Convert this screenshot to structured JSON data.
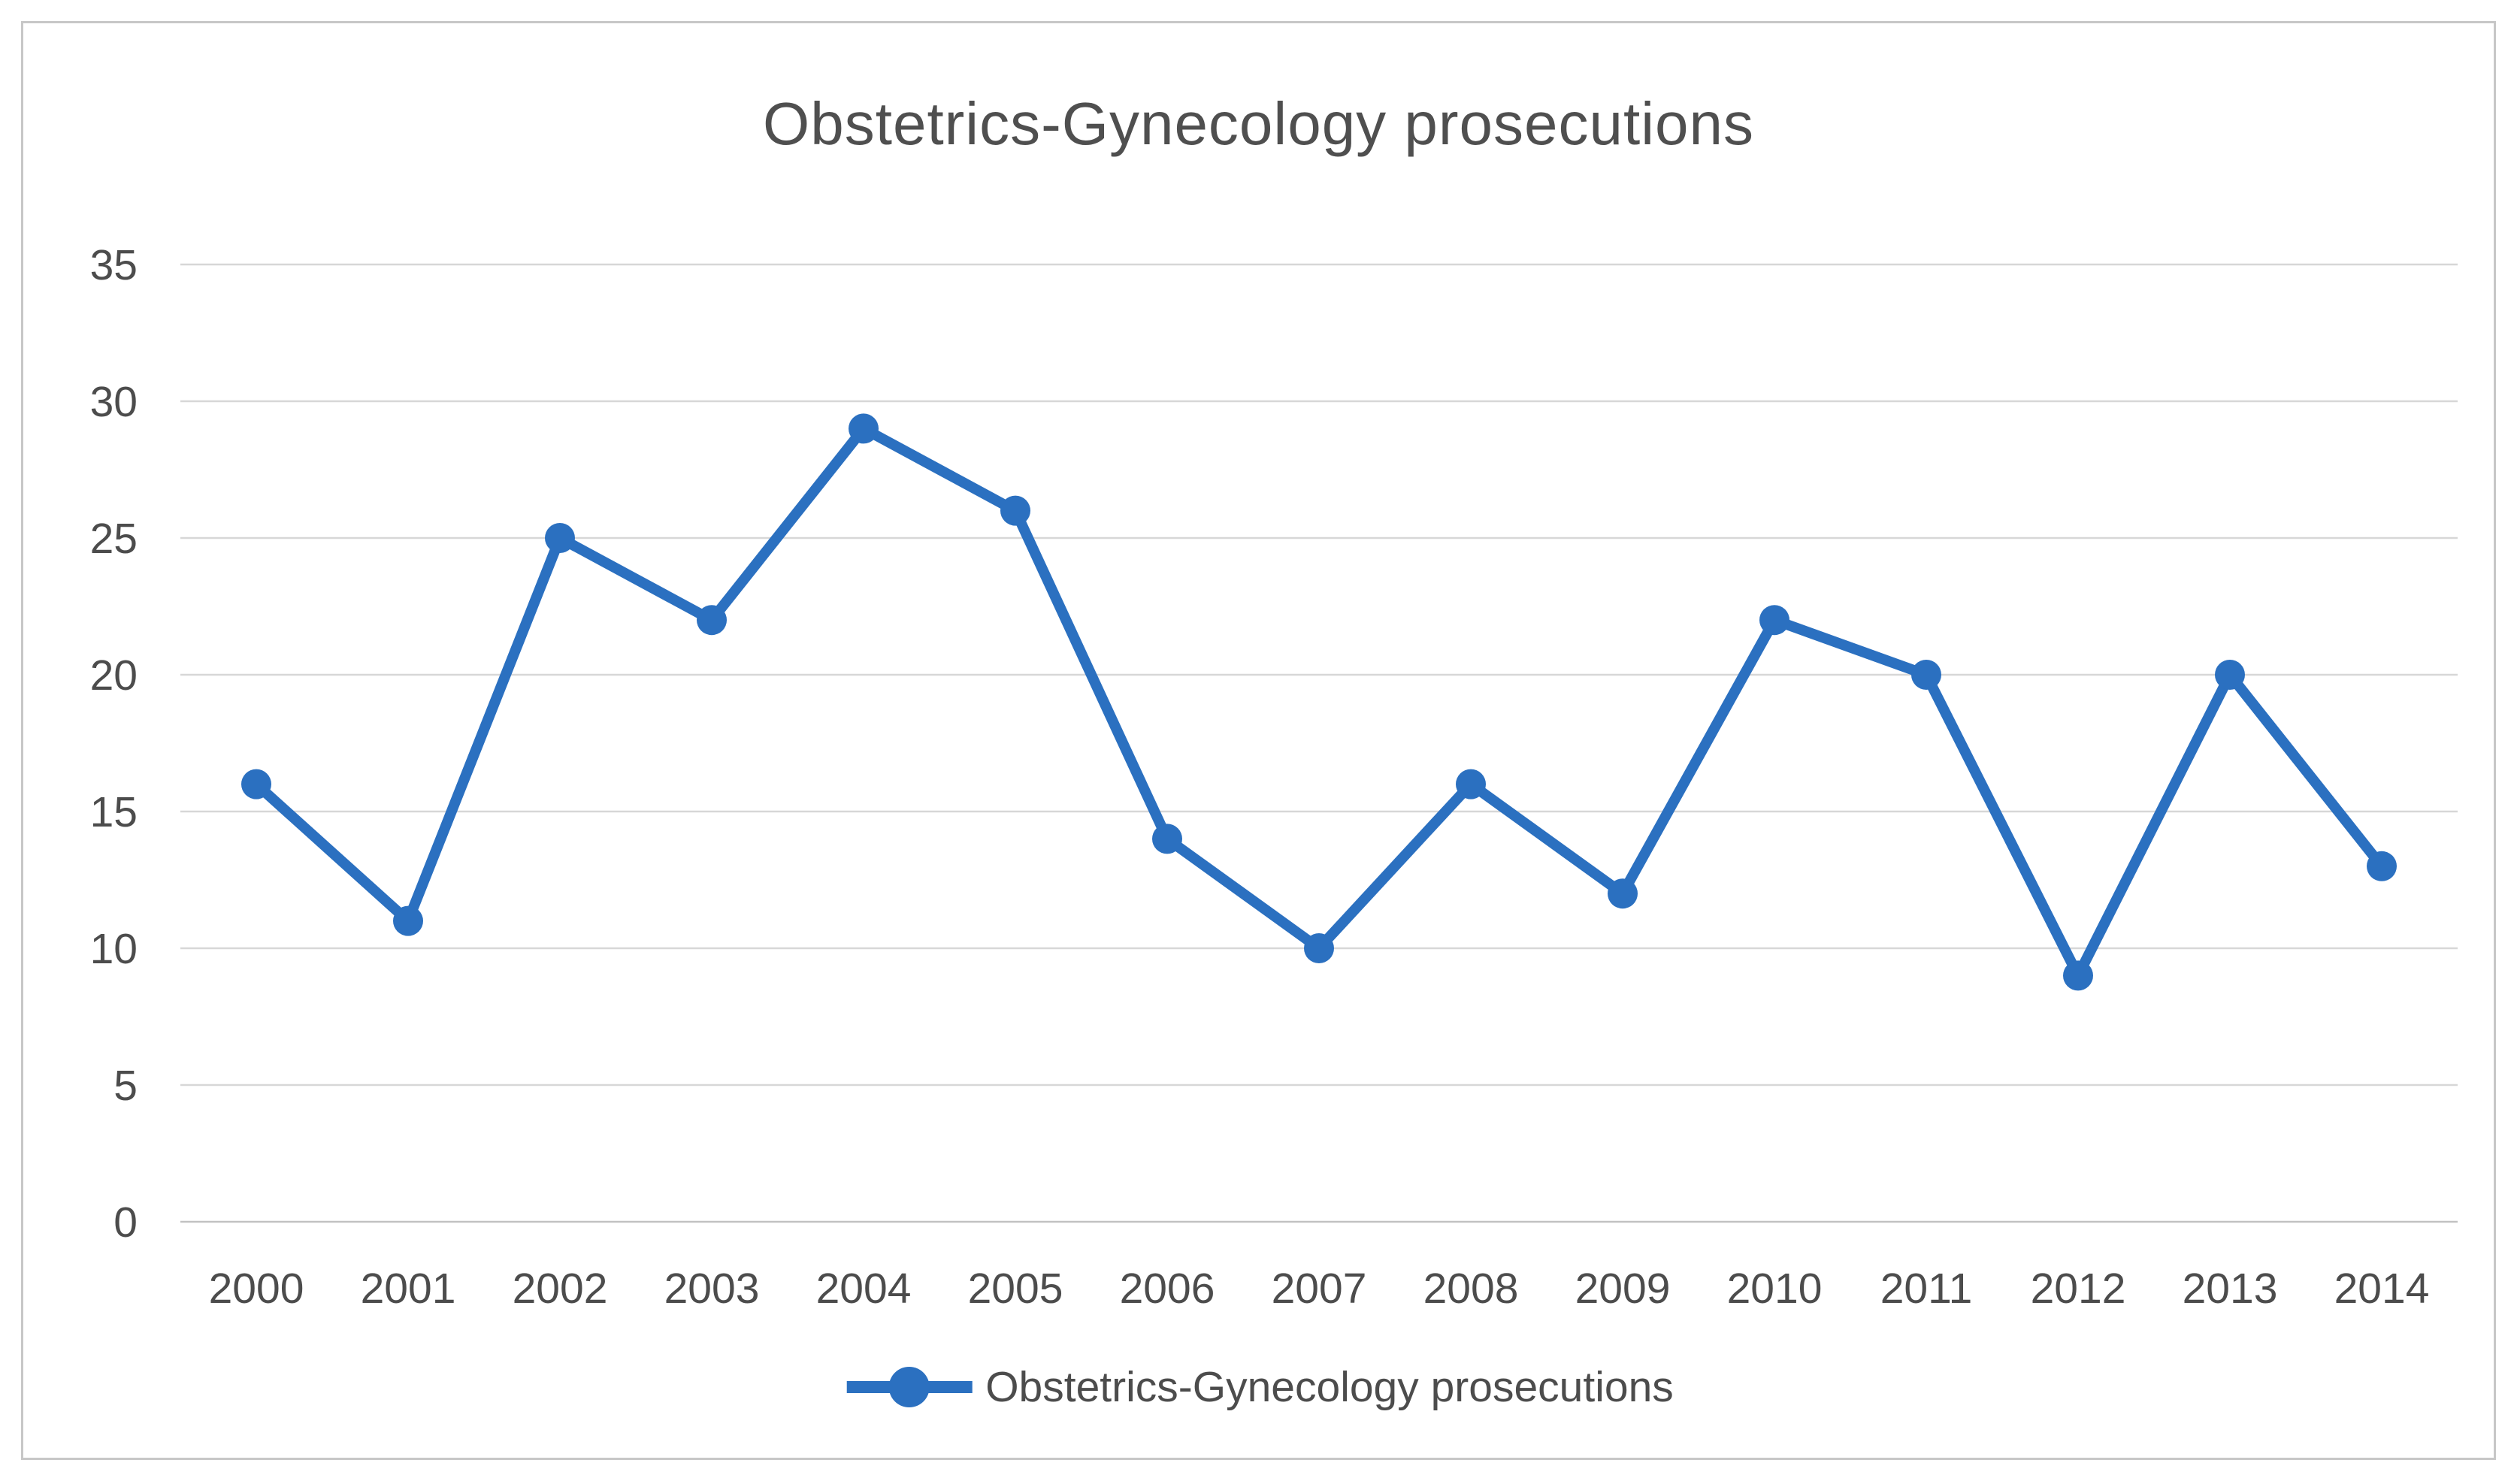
{
  "chart_data": {
    "type": "line",
    "title": "Obstetrics-Gynecology prosecutions",
    "categories": [
      "2000",
      "2001",
      "2002",
      "2003",
      "2004",
      "2005",
      "2006",
      "2007",
      "2008",
      "2009",
      "2010",
      "2011",
      "2012",
      "2013",
      "2014"
    ],
    "series": [
      {
        "name": "Obstetrics-Gynecology prosecutions",
        "values": [
          16,
          11,
          25,
          22,
          29,
          26,
          14,
          10,
          16,
          12,
          22,
          20,
          9,
          20,
          13
        ]
      }
    ],
    "xlabel": "",
    "ylabel": "",
    "ylim": [
      0,
      35
    ],
    "yticks": [
      0,
      5,
      10,
      15,
      20,
      25,
      30,
      35
    ],
    "grid": true,
    "legend_position": "bottom",
    "marker": "circle"
  },
  "colors": {
    "line": "#2B70C0",
    "grid": "#D7D7D7",
    "axis_line": "#C2C2C2",
    "tick_text": "#4C4C4C",
    "title_text": "#4F4F4F",
    "frame_border": "#C7C7C7",
    "background": "#FFFFFF"
  }
}
